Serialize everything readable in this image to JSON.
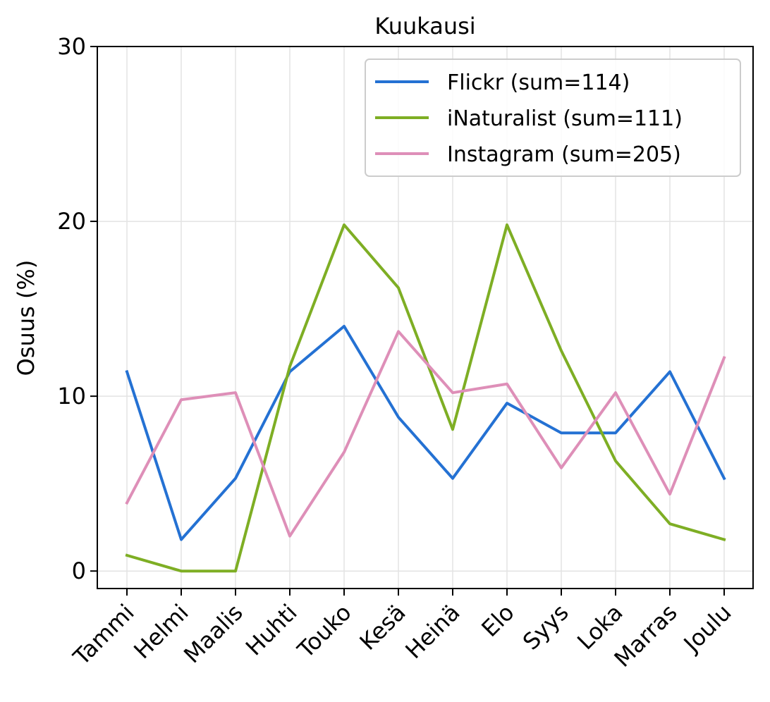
{
  "chart_data": {
    "type": "line",
    "title": "Kuukausi",
    "xlabel": "",
    "ylabel": "Osuus (%)",
    "categories": [
      "Tammi",
      "Helmi",
      "Maalis",
      "Huhti",
      "Touko",
      "Kesä",
      "Heinä",
      "Elo",
      "Syys",
      "Loka",
      "Marras",
      "Joulu"
    ],
    "ylim": [
      -1,
      30
    ],
    "yticks": [
      "0",
      "10",
      "20",
      "30"
    ],
    "grid": true,
    "legend_position": "top-right",
    "series": [
      {
        "name": "Flickr (sum=114)",
        "color": "#2471d3",
        "values": [
          11.4,
          1.8,
          5.3,
          11.4,
          14.0,
          8.8,
          5.3,
          9.6,
          7.9,
          7.9,
          11.4,
          5.3
        ]
      },
      {
        "name": "iNaturalist (sum=111)",
        "color": "#7eae24",
        "values": [
          0.9,
          0.0,
          0.0,
          11.7,
          19.8,
          16.2,
          8.1,
          19.8,
          12.6,
          6.3,
          2.7,
          1.8
        ]
      },
      {
        "name": "Instagram (sum=205)",
        "color": "#de8fb8",
        "values": [
          3.9,
          9.8,
          10.2,
          2.0,
          6.8,
          13.7,
          10.2,
          10.7,
          5.9,
          10.2,
          4.4,
          12.2
        ]
      }
    ]
  }
}
